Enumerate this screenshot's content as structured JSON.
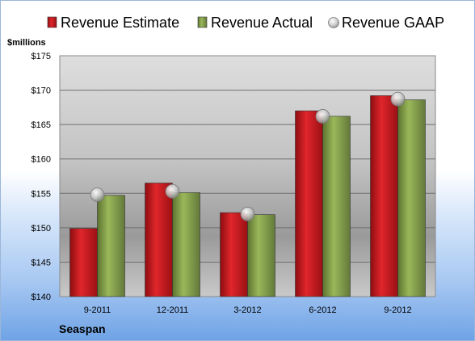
{
  "company": "Seaspan",
  "chart_data": {
    "type": "bar",
    "ylabel": "$millions",
    "ylim": [
      140,
      175
    ],
    "ytick_step": 5,
    "ytick_prefix": "$",
    "grid": true,
    "legend_position": "top",
    "categories": [
      "9-2011",
      "12-2011",
      "3-2012",
      "6-2012",
      "9-2012"
    ],
    "series": [
      {
        "name": "Revenue Estimate",
        "kind": "bar",
        "color": "#c0161b",
        "values": [
          149.9,
          156.5,
          152.2,
          167.0,
          169.2
        ]
      },
      {
        "name": "Revenue Actual",
        "kind": "bar",
        "color": "#7f9a45",
        "values": [
          154.7,
          155.1,
          151.9,
          166.2,
          168.6
        ]
      },
      {
        "name": "Revenue GAAP",
        "kind": "marker",
        "color": "#b8b8b8",
        "values": [
          154.8,
          155.3,
          152.0,
          166.2,
          168.7
        ]
      }
    ]
  }
}
